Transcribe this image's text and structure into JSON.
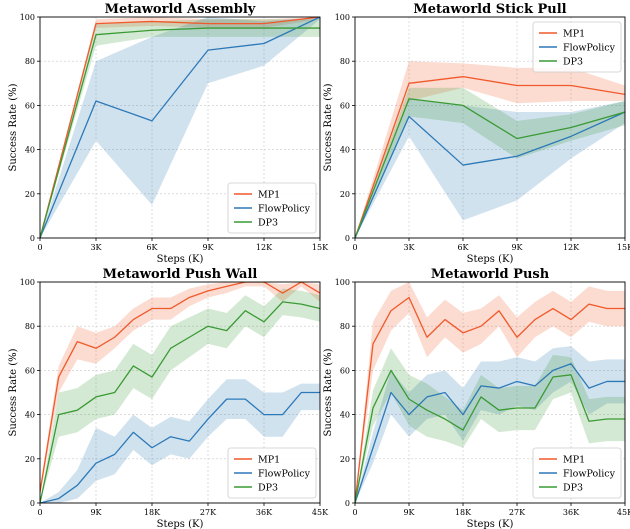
{
  "series_colors": {
    "MP1": "#f0592b",
    "FlowPolicy": "#2d79b8",
    "DP3": "#3a9a35"
  },
  "chart_data": [
    {
      "type": "line",
      "title": "Metaworld Assembly",
      "xlabel": "Steps (K)",
      "ylabel": "Success Rate (%)",
      "xlim": [
        0,
        15
      ],
      "ylim": [
        0,
        100
      ],
      "xticks": [
        0,
        3,
        6,
        9,
        12,
        15
      ],
      "xtick_labels": [
        "0",
        "3K",
        "6K",
        "9K",
        "12K",
        "15K"
      ],
      "yticks": [
        0,
        20,
        40,
        60,
        80,
        100
      ],
      "ytick_labels": [
        "0",
        "20",
        "40",
        "60",
        "80",
        "100"
      ],
      "grid": true,
      "legend_position": "bottom-right",
      "x": [
        0,
        3,
        6,
        9,
        12,
        15
      ],
      "series": [
        {
          "name": "MP1",
          "values": [
            0,
            97,
            98,
            97,
            97,
            100
          ],
          "lower": [
            0,
            95,
            96,
            95,
            95,
            99
          ],
          "upper": [
            0,
            99,
            100,
            99,
            99,
            100
          ]
        },
        {
          "name": "FlowPolicy",
          "values": [
            0,
            62,
            53,
            85,
            88,
            100
          ],
          "lower": [
            0,
            44,
            15,
            70,
            78,
            99
          ],
          "upper": [
            0,
            80,
            91,
            100,
            98,
            100
          ]
        },
        {
          "name": "DP3",
          "values": [
            0,
            92,
            94,
            95,
            95,
            95
          ],
          "lower": [
            0,
            87,
            91,
            91,
            91,
            91
          ],
          "upper": [
            0,
            97,
            98,
            99,
            99,
            99
          ]
        }
      ]
    },
    {
      "type": "line",
      "title": "Metaworld Stick Pull",
      "xlabel": "Steps (K)",
      "ylabel": "Success Rate (%)",
      "xlim": [
        0,
        15
      ],
      "ylim": [
        0,
        100
      ],
      "xticks": [
        0,
        3,
        6,
        9,
        12,
        15
      ],
      "xtick_labels": [
        "0",
        "3K",
        "6K",
        "9K",
        "12K",
        "15K"
      ],
      "yticks": [
        0,
        20,
        40,
        60,
        80,
        100
      ],
      "ytick_labels": [
        "0",
        "20",
        "40",
        "60",
        "80",
        "100"
      ],
      "grid": true,
      "legend_position": "top-right",
      "x": [
        0,
        3,
        6,
        9,
        12,
        15
      ],
      "series": [
        {
          "name": "MP1",
          "values": [
            0,
            70,
            73,
            69,
            69,
            65
          ],
          "lower": [
            0,
            62,
            68,
            61,
            62,
            62
          ],
          "upper": [
            0,
            80,
            79,
            77,
            77,
            69
          ]
        },
        {
          "name": "FlowPolicy",
          "values": [
            0,
            55,
            33,
            37,
            46,
            57
          ],
          "lower": [
            0,
            46,
            8,
            17,
            36,
            52
          ],
          "upper": [
            0,
            63,
            60,
            57,
            57,
            62
          ]
        },
        {
          "name": "DP3",
          "values": [
            0,
            63,
            60,
            45,
            50,
            57
          ],
          "lower": [
            0,
            55,
            52,
            36,
            44,
            51
          ],
          "upper": [
            0,
            68,
            68,
            53,
            56,
            62
          ]
        }
      ]
    },
    {
      "type": "line",
      "title": "Metaworld Push Wall",
      "xlabel": "Steps (K)",
      "ylabel": "Success Rate (%)",
      "xlim": [
        0,
        45
      ],
      "ylim": [
        0,
        100
      ],
      "xticks": [
        0,
        9,
        18,
        27,
        36,
        45
      ],
      "xtick_labels": [
        "0",
        "9K",
        "18K",
        "27K",
        "36K",
        "45K"
      ],
      "yticks": [
        0,
        20,
        40,
        60,
        80,
        100
      ],
      "ytick_labels": [
        "0",
        "20",
        "40",
        "60",
        "80",
        "100"
      ],
      "grid": true,
      "legend_position": "bottom-right",
      "x": [
        0,
        3,
        6,
        9,
        12,
        15,
        18,
        21,
        24,
        27,
        30,
        33,
        36,
        39,
        42,
        45
      ],
      "series": [
        {
          "name": "MP1",
          "values": [
            5,
            57,
            73,
            70,
            75,
            83,
            88,
            88,
            93,
            96,
            98,
            100,
            100,
            95,
            100,
            95
          ],
          "lower": [
            3,
            50,
            65,
            63,
            70,
            78,
            83,
            83,
            89,
            93,
            95,
            98,
            98,
            91,
            98,
            91
          ],
          "upper": [
            7,
            62,
            80,
            77,
            80,
            88,
            93,
            93,
            97,
            99,
            100,
            100,
            100,
            99,
            100,
            99
          ]
        },
        {
          "name": "FlowPolicy",
          "values": [
            0,
            2,
            8,
            18,
            22,
            32,
            25,
            30,
            28,
            38,
            47,
            47,
            40,
            40,
            50,
            50
          ],
          "lower": [
            0,
            0,
            2,
            10,
            13,
            24,
            17,
            22,
            20,
            30,
            38,
            38,
            30,
            30,
            42,
            42
          ],
          "upper": [
            0,
            5,
            15,
            34,
            30,
            40,
            34,
            39,
            37,
            47,
            56,
            56,
            50,
            50,
            54,
            54
          ]
        },
        {
          "name": "DP3",
          "values": [
            0,
            40,
            42,
            48,
            50,
            62,
            57,
            70,
            75,
            80,
            78,
            87,
            82,
            91,
            90,
            88
          ],
          "lower": [
            0,
            30,
            32,
            38,
            40,
            52,
            47,
            60,
            66,
            72,
            70,
            80,
            75,
            85,
            84,
            82
          ],
          "upper": [
            0,
            50,
            52,
            58,
            60,
            72,
            67,
            80,
            84,
            88,
            86,
            94,
            89,
            97,
            96,
            94
          ]
        }
      ]
    },
    {
      "type": "line",
      "title": "Metaworld Push",
      "xlabel": "Steps (K)",
      "ylabel": "Success Rate (%)",
      "xlim": [
        0,
        45
      ],
      "ylim": [
        0,
        100
      ],
      "xticks": [
        0,
        9,
        18,
        27,
        36,
        45
      ],
      "xtick_labels": [
        "0",
        "9K",
        "18K",
        "27K",
        "36K",
        "45K"
      ],
      "yticks": [
        0,
        20,
        40,
        60,
        80,
        100
      ],
      "ytick_labels": [
        "0",
        "20",
        "40",
        "60",
        "80",
        "100"
      ],
      "grid": true,
      "legend_position": "bottom-right",
      "x": [
        0,
        3,
        6,
        9,
        12,
        15,
        18,
        21,
        24,
        27,
        30,
        33,
        36,
        39,
        42,
        45
      ],
      "series": [
        {
          "name": "MP1",
          "values": [
            0,
            72,
            87,
            93,
            75,
            83,
            77,
            80,
            87,
            75,
            83,
            88,
            83,
            90,
            88,
            88
          ],
          "lower": [
            0,
            60,
            78,
            86,
            66,
            75,
            68,
            72,
            80,
            66,
            75,
            80,
            75,
            82,
            80,
            80
          ],
          "upper": [
            0,
            82,
            96,
            100,
            84,
            92,
            86,
            88,
            94,
            84,
            91,
            96,
            91,
            98,
            96,
            96
          ]
        },
        {
          "name": "FlowPolicy",
          "values": [
            0,
            25,
            50,
            40,
            48,
            50,
            40,
            53,
            52,
            55,
            53,
            60,
            63,
            52,
            55,
            55
          ],
          "lower": [
            0,
            18,
            40,
            30,
            38,
            40,
            28,
            42,
            40,
            44,
            42,
            50,
            55,
            40,
            45,
            45
          ],
          "upper": [
            0,
            32,
            60,
            50,
            58,
            60,
            52,
            64,
            64,
            66,
            64,
            70,
            71,
            64,
            65,
            65
          ]
        },
        {
          "name": "DP3",
          "values": [
            0,
            43,
            60,
            47,
            42,
            38,
            33,
            48,
            42,
            43,
            43,
            57,
            58,
            37,
            38,
            38
          ],
          "lower": [
            0,
            35,
            50,
            35,
            30,
            28,
            25,
            38,
            32,
            33,
            33,
            47,
            50,
            27,
            28,
            28
          ],
          "upper": [
            0,
            51,
            70,
            58,
            54,
            48,
            42,
            58,
            52,
            53,
            53,
            67,
            66,
            47,
            48,
            48
          ]
        }
      ]
    }
  ]
}
